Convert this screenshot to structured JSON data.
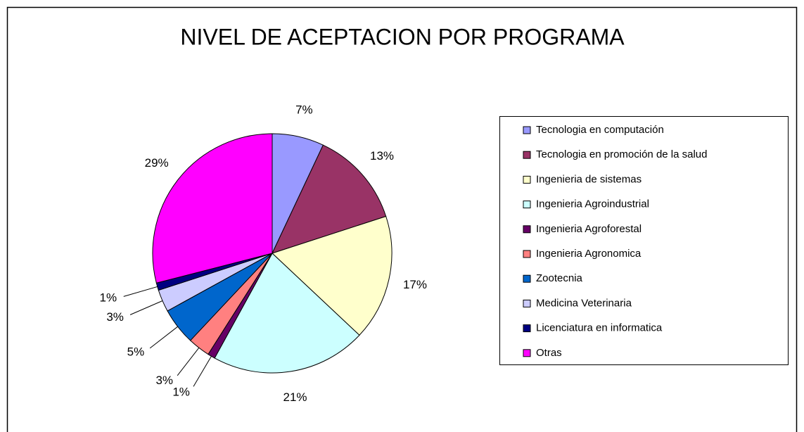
{
  "chart_data": {
    "type": "pie",
    "title": "NIVEL DE ACEPTACION POR PROGRAMA",
    "categories": [
      "Tecnologia en computación",
      "Tecnologia en promoción de la salud",
      "Ingenieria de sistemas",
      "Ingenieria Agroindustrial",
      "Ingenieria Agroforestal",
      "Ingenieria Agronomica",
      "Zootecnia",
      "Medicina Veterinaria",
      "Licenciatura en informatica",
      "Otras"
    ],
    "values": [
      7,
      13,
      17,
      21,
      1,
      3,
      5,
      3,
      1,
      29
    ],
    "value_labels": [
      "7%",
      "13%",
      "17%",
      "21%",
      "1%",
      "3%",
      "5%",
      "3%",
      "1%",
      "29%"
    ],
    "colors": [
      "#9999ff",
      "#993366",
      "#ffffcc",
      "#ccffff",
      "#660066",
      "#ff8080",
      "#0066cc",
      "#ccccff",
      "#000080",
      "#ff00ff"
    ],
    "legend": "right"
  }
}
